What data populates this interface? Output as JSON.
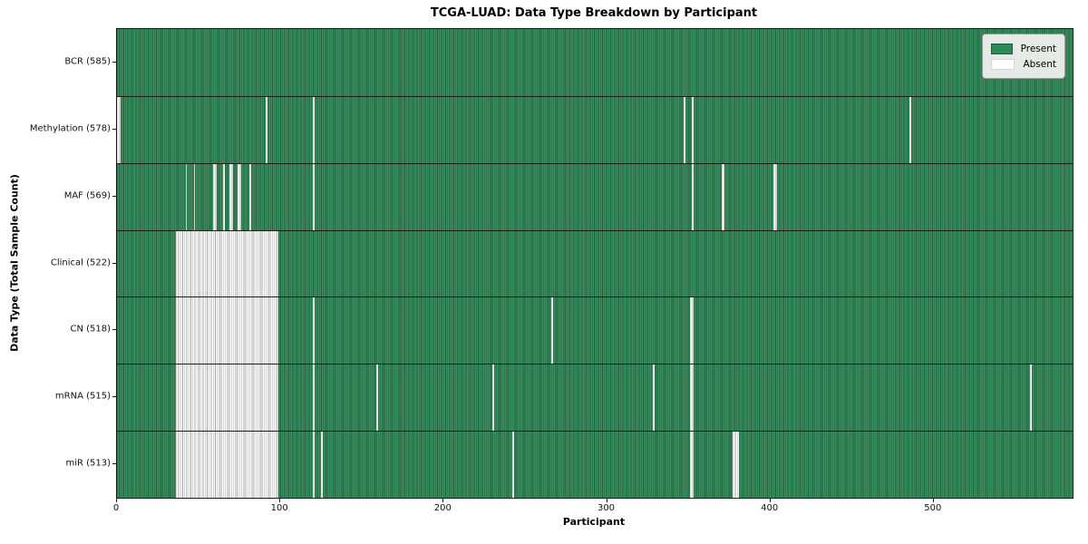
{
  "chart_data": {
    "type": "heatmap",
    "title": "TCGA-LUAD: Data Type Breakdown by Participant",
    "xlabel": "Participant",
    "ylabel": "Data Type (Total Sample Count)",
    "n_participants": 585,
    "xlim": [
      0,
      585
    ],
    "x_ticks": [
      0,
      100,
      200,
      300,
      400,
      500
    ],
    "x_tick_labels": [
      "0",
      "100",
      "200",
      "300",
      "400",
      "500"
    ],
    "grid": false,
    "legend": {
      "position": "upper-right",
      "entries": [
        {
          "label": "Present",
          "color": "#2e8b57"
        },
        {
          "label": "Absent",
          "color": "#ffffff"
        }
      ]
    },
    "colors": {
      "present_fill": "#3a8f5f",
      "present_edge": "#215f3e",
      "absent_fill": "#ffffff",
      "absent_edge": "#a8a8a8",
      "legend_bg": "#e6e9e6",
      "frame": "#1a1a1a"
    },
    "rows": [
      {
        "name": "bcr",
        "label": "BCR (585)",
        "data_type": "BCR",
        "present_count": 585,
        "absent_ranges": []
      },
      {
        "name": "methylation",
        "label": "Methylation (578)",
        "data_type": "Methylation",
        "present_count": 578,
        "absent_ranges": [
          [
            0,
            1
          ],
          [
            91,
            91
          ],
          [
            120,
            120
          ],
          [
            347,
            347
          ],
          [
            352,
            352
          ],
          [
            485,
            485
          ]
        ]
      },
      {
        "name": "maf",
        "label": "MAF (569)",
        "data_type": "MAF",
        "present_count": 569,
        "absent_ranges": [
          [
            42,
            42
          ],
          [
            47,
            47
          ],
          [
            59,
            60
          ],
          [
            65,
            65
          ],
          [
            69,
            70
          ],
          [
            74,
            75
          ],
          [
            81,
            81
          ],
          [
            120,
            120
          ],
          [
            352,
            352
          ],
          [
            370,
            371
          ],
          [
            402,
            403
          ]
        ]
      },
      {
        "name": "clinical",
        "label": "Clinical (522)",
        "data_type": "Clinical",
        "present_count": 522,
        "absent_ranges": [
          [
            36,
            98
          ]
        ]
      },
      {
        "name": "cn",
        "label": "CN (518)",
        "data_type": "CN",
        "present_count": 518,
        "absent_ranges": [
          [
            36,
            98
          ],
          [
            120,
            120
          ],
          [
            266,
            266
          ],
          [
            351,
            352
          ]
        ]
      },
      {
        "name": "mrna",
        "label": "mRNA (515)",
        "data_type": "mRNA",
        "present_count": 515,
        "absent_ranges": [
          [
            36,
            98
          ],
          [
            120,
            120
          ],
          [
            159,
            159
          ],
          [
            230,
            230
          ],
          [
            328,
            328
          ],
          [
            351,
            352
          ],
          [
            559,
            559
          ]
        ]
      },
      {
        "name": "mir",
        "label": "miR (513)",
        "data_type": "miR",
        "present_count": 513,
        "absent_ranges": [
          [
            36,
            98
          ],
          [
            120,
            120
          ],
          [
            125,
            125
          ],
          [
            242,
            242
          ],
          [
            351,
            352
          ],
          [
            377,
            380
          ]
        ]
      }
    ]
  }
}
